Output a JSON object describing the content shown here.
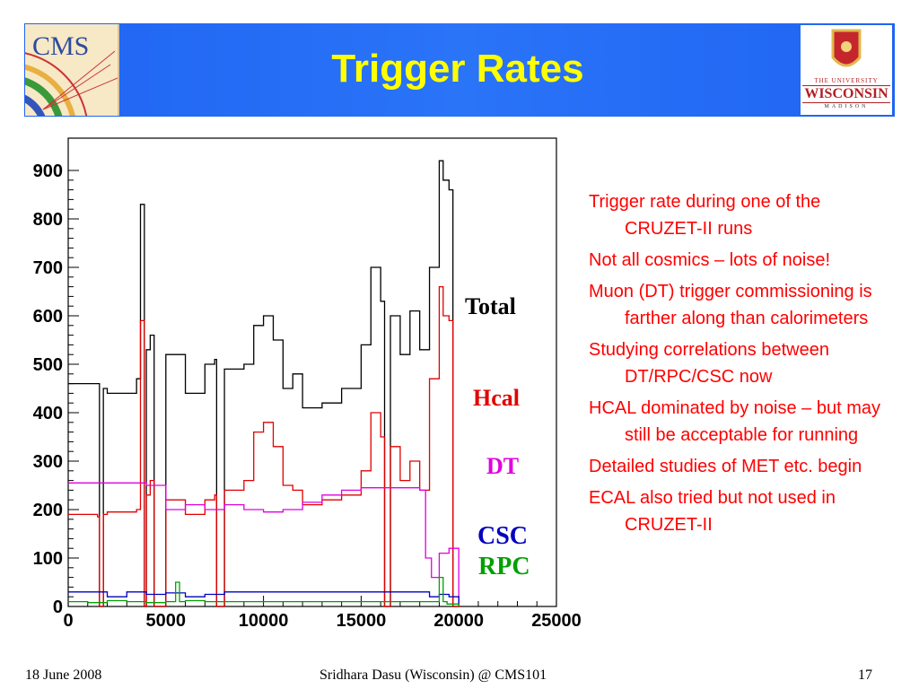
{
  "slide": {
    "title": "Trigger Rates",
    "logo_left_text": "CMS",
    "logo_right": {
      "line1": "THE UNIVERSITY",
      "line2": "WISCONSIN",
      "line3": "MADISON"
    },
    "footer": {
      "date": "18 June 2008",
      "presenter": "Sridhara Dasu (Wisconsin) @ CMS101",
      "page": "17"
    },
    "bullets": [
      "Trigger rate during one of the CRUZET-II runs",
      "Not all cosmics – lots of noise!",
      "Muon (DT) trigger commissioning is farther along than calorimeters",
      "Studying correlations between DT/RPC/CSC now",
      "HCAL dominated by noise – but may still be acceptable for running",
      "Detailed studies of MET etc. begin",
      "ECAL also tried but not used in CRUZET-II"
    ],
    "colors": {
      "header_bg": "#1f64f2",
      "title": "#ffff00",
      "bullet_text": "#ff0000",
      "total": "#000000",
      "hcal": "#e00000",
      "dt": "#e000e0",
      "csc": "#0000c0",
      "rpc": "#00a000"
    }
  },
  "chart_data": {
    "type": "line",
    "title": "",
    "xlabel": "",
    "ylabel": "",
    "xlim": [
      0,
      25000
    ],
    "ylim": [
      0,
      950
    ],
    "xticks": [
      0,
      5000,
      10000,
      15000,
      20000,
      25000
    ],
    "yticks": [
      0,
      100,
      200,
      300,
      400,
      500,
      600,
      700,
      800,
      900
    ],
    "legend_placement": "right (labels beside curves)",
    "series": [
      {
        "name": "Total",
        "color": "#000000",
        "x": [
          0,
          1500,
          1600,
          1800,
          2000,
          3500,
          3700,
          3900,
          4000,
          4200,
          4400,
          5000,
          6000,
          7000,
          7500,
          7600,
          8000,
          9000,
          9500,
          10000,
          10500,
          11000,
          11500,
          12000,
          13000,
          14000,
          15000,
          15500,
          16000,
          16200,
          16500,
          17000,
          17500,
          18000,
          18500,
          19000,
          19200,
          19500,
          19700,
          20000,
          20100
        ],
        "values": [
          460,
          460,
          0,
          450,
          440,
          470,
          830,
          0,
          530,
          560,
          0,
          520,
          440,
          500,
          510,
          0,
          490,
          500,
          580,
          600,
          550,
          450,
          480,
          410,
          420,
          450,
          540,
          700,
          630,
          0,
          600,
          520,
          610,
          530,
          700,
          920,
          880,
          860,
          0,
          0,
          0
        ]
      },
      {
        "name": "Hcal",
        "color": "#e00000",
        "x": [
          0,
          1500,
          1600,
          1800,
          2000,
          3500,
          3700,
          3900,
          4000,
          4200,
          4400,
          5000,
          6000,
          7000,
          7500,
          7600,
          8000,
          9000,
          9500,
          10000,
          10500,
          11000,
          11500,
          12000,
          13000,
          14000,
          15000,
          15500,
          16000,
          16200,
          16500,
          17000,
          17500,
          18000,
          18500,
          19000,
          19200,
          19500,
          19700,
          20000,
          20100
        ],
        "values": [
          190,
          185,
          0,
          190,
          195,
          200,
          590,
          0,
          230,
          260,
          0,
          220,
          190,
          220,
          230,
          0,
          240,
          260,
          360,
          380,
          330,
          250,
          240,
          210,
          220,
          230,
          280,
          400,
          350,
          0,
          330,
          260,
          300,
          240,
          470,
          660,
          600,
          590,
          0,
          0,
          0
        ]
      },
      {
        "name": "DT",
        "color": "#e000e0",
        "x": [
          0,
          3000,
          4000,
          5000,
          6000,
          7000,
          8000,
          9000,
          10000,
          11000,
          12000,
          13000,
          14000,
          15000,
          16000,
          17000,
          18000,
          18300,
          18600,
          19000,
          19500,
          20000
        ],
        "values": [
          255,
          255,
          250,
          200,
          210,
          200,
          210,
          200,
          195,
          200,
          215,
          230,
          240,
          245,
          245,
          245,
          240,
          100,
          60,
          110,
          120,
          0
        ]
      },
      {
        "name": "CSC",
        "color": "#0000c0",
        "x": [
          0,
          2000,
          3000,
          4000,
          5000,
          6000,
          7000,
          8000,
          10000,
          12000,
          14000,
          16000,
          17000,
          18000,
          18500,
          19000,
          19500,
          20000
        ],
        "values": [
          30,
          20,
          30,
          25,
          28,
          20,
          25,
          30,
          30,
          30,
          30,
          30,
          30,
          30,
          20,
          25,
          20,
          0
        ]
      },
      {
        "name": "RPC",
        "color": "#00a000",
        "x": [
          0,
          1000,
          2000,
          3000,
          4000,
          5000,
          5500,
          5700,
          6000,
          7000,
          8000,
          10000,
          12000,
          14000,
          16000,
          18000,
          19000,
          19200,
          19400,
          20000
        ],
        "values": [
          10,
          8,
          12,
          10,
          8,
          10,
          50,
          10,
          12,
          10,
          10,
          10,
          10,
          10,
          10,
          10,
          60,
          10,
          5,
          0
        ]
      }
    ]
  }
}
